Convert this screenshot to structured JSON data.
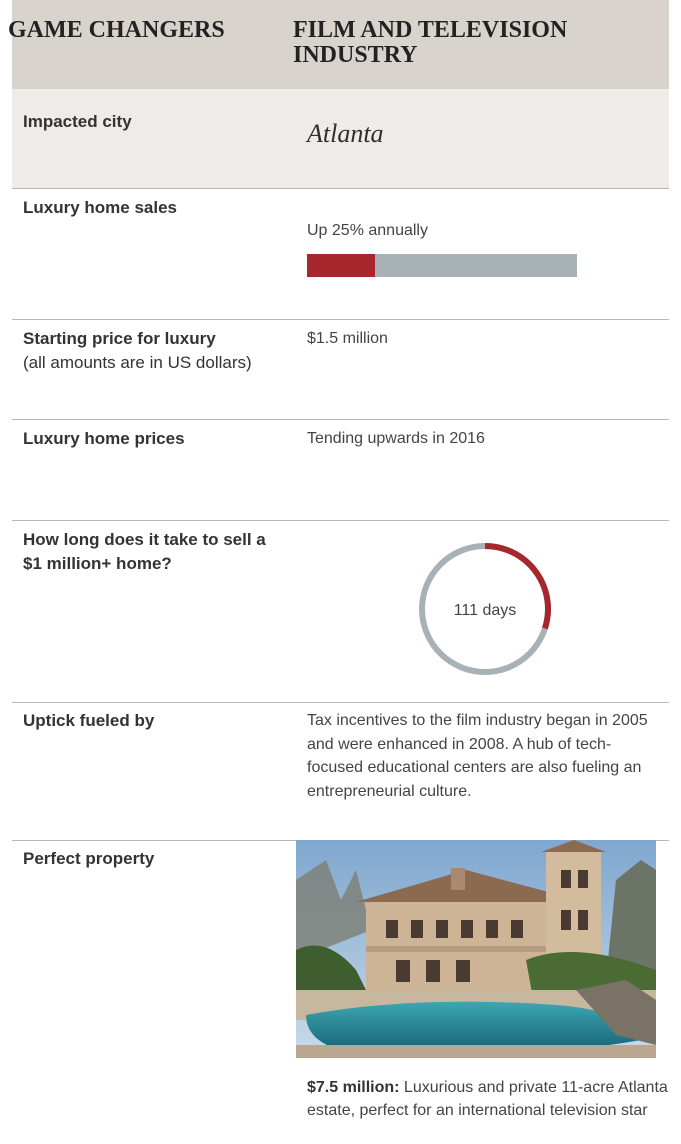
{
  "header": {
    "left_title": "GAME CHANGERS",
    "right_title": "FILM AND TELEVISION INDUSTRY"
  },
  "rows": {
    "city": {
      "label": "Impacted city",
      "value": "Atlanta"
    },
    "sales": {
      "label": "Luxury home sales",
      "value": "Up 25% annually",
      "percent": 25
    },
    "starting_price": {
      "label": "Starting price for luxury",
      "sublabel": "(all amounts are in US dollars)",
      "value": "$1.5 million"
    },
    "prices": {
      "label": "Luxury home prices",
      "value": "Tending upwards in 2016"
    },
    "time_to_sell": {
      "label": "How long does it take to sell a $1 million+ home?",
      "value": "111 days",
      "fraction": 0.3
    },
    "uptick": {
      "label": "Uptick fueled by",
      "value": "Tax incentives to the film industry began in 2005 and were enhanced in 2008. A hub of tech-focused educational centers are also fueling an entrepreneurial culture."
    },
    "property": {
      "label": "Perfect property",
      "price": "$7.5 million:",
      "caption": "Luxurious and private 11-acre Atlanta estate, perfect for an international television star"
    }
  },
  "colors": {
    "accent": "#a8262e",
    "track": "#a7b2b7",
    "header_bg": "#d9d3ce",
    "row_bg": "#efebe8"
  }
}
